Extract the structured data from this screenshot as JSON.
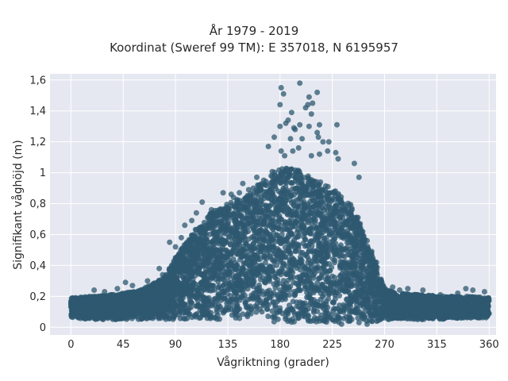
{
  "chart_data": {
    "type": "scatter",
    "title": "År 1979 - 2019",
    "subtitle": "Koordinat (Sweref 99 TM): E 357018, N 6195957",
    "xlabel": "Vågriktning (grader)",
    "ylabel": "Signifikant våghöjd (m)",
    "xlim": [
      -18,
      366
    ],
    "ylim": [
      -0.05,
      1.64
    ],
    "xticks": [
      0,
      45,
      90,
      135,
      180,
      225,
      270,
      315,
      360
    ],
    "xtick_labels": [
      "0",
      "45",
      "90",
      "135",
      "180",
      "225",
      "270",
      "315",
      "360"
    ],
    "yticks": [
      0,
      0.2,
      0.4,
      0.6,
      0.8,
      1.0,
      1.2,
      1.4,
      1.6
    ],
    "ytick_labels": [
      "0",
      "0,2",
      "0,4",
      "0,6",
      "0,8",
      "1",
      "1,2",
      "1,4",
      "1,6"
    ],
    "grid": true,
    "marker_color": "#2e5870",
    "background_color": "#e5e8f0",
    "envelope": {
      "x": [
        0,
        20,
        45,
        60,
        70,
        80,
        90,
        100,
        110,
        120,
        135,
        150,
        165,
        175,
        185,
        195,
        205,
        215,
        225,
        235,
        245,
        255,
        265,
        270,
        280,
        300,
        320,
        340,
        360
      ],
      "y_min": [
        0.06,
        0.05,
        0.05,
        0.05,
        0.05,
        0.05,
        0.05,
        0.05,
        0.05,
        0.05,
        0.05,
        0.05,
        0.04,
        0.03,
        0.02,
        0.02,
        0.02,
        0.03,
        0.03,
        0.03,
        0.03,
        0.03,
        0.04,
        0.05,
        0.05,
        0.05,
        0.05,
        0.06,
        0.06
      ],
      "y_max": [
        0.19,
        0.2,
        0.22,
        0.24,
        0.28,
        0.32,
        0.45,
        0.56,
        0.66,
        0.74,
        0.8,
        0.85,
        0.95,
        1.02,
        1.03,
        1.02,
        0.98,
        0.94,
        0.9,
        0.84,
        0.76,
        0.55,
        0.36,
        0.25,
        0.22,
        0.21,
        0.2,
        0.2,
        0.19
      ]
    },
    "outliers": [
      [
        181,
        1.55
      ],
      [
        197,
        1.58
      ],
      [
        212,
        1.52
      ],
      [
        183,
        1.51
      ],
      [
        205,
        1.49
      ],
      [
        180,
        1.44
      ],
      [
        204,
        1.44
      ],
      [
        208,
        1.45
      ],
      [
        202,
        1.42
      ],
      [
        190,
        1.39
      ],
      [
        207,
        1.38
      ],
      [
        187,
        1.34
      ],
      [
        185,
        1.32
      ],
      [
        197,
        1.31
      ],
      [
        205,
        1.3
      ],
      [
        214,
        1.31
      ],
      [
        229,
        1.31
      ],
      [
        180,
        1.3
      ],
      [
        192,
        1.29
      ],
      [
        193,
        1.28
      ],
      [
        212,
        1.26
      ],
      [
        175,
        1.23
      ],
      [
        189,
        1.22
      ],
      [
        199,
        1.22
      ],
      [
        213,
        1.23
      ],
      [
        217,
        1.2
      ],
      [
        222,
        1.2
      ],
      [
        170,
        1.17
      ],
      [
        196,
        1.16
      ],
      [
        181,
        1.14
      ],
      [
        191,
        1.14
      ],
      [
        221,
        1.14
      ],
      [
        184,
        1.11
      ],
      [
        207,
        1.11
      ],
      [
        214,
        1.12
      ],
      [
        228,
        1.13
      ],
      [
        230,
        1.09
      ],
      [
        244,
        1.06
      ],
      [
        148,
        0.93
      ],
      [
        160,
        0.97
      ],
      [
        157,
        0.9
      ],
      [
        248,
        0.97
      ],
      [
        131,
        0.87
      ],
      [
        138,
        0.86
      ],
      [
        145,
        0.87
      ],
      [
        153,
        0.89
      ],
      [
        140,
        0.84
      ],
      [
        121,
        0.76
      ],
      [
        113,
        0.81
      ],
      [
        108,
        0.74
      ],
      [
        104,
        0.69
      ],
      [
        98,
        0.66
      ],
      [
        95,
        0.58
      ],
      [
        85,
        0.55
      ],
      [
        90,
        0.52
      ],
      [
        76,
        0.38
      ],
      [
        79,
        0.34
      ],
      [
        66,
        0.3
      ],
      [
        53,
        0.27
      ],
      [
        47,
        0.29
      ],
      [
        40,
        0.25
      ],
      [
        20,
        0.24
      ],
      [
        29,
        0.23
      ],
      [
        263,
        0.42
      ],
      [
        259,
        0.49
      ],
      [
        255,
        0.56
      ],
      [
        263,
        0.29
      ],
      [
        277,
        0.26
      ],
      [
        283,
        0.24
      ],
      [
        290,
        0.25
      ],
      [
        303,
        0.24
      ],
      [
        318,
        0.21
      ],
      [
        333,
        0.22
      ],
      [
        340,
        0.25
      ],
      [
        346,
        0.24
      ],
      [
        356,
        0.23
      ],
      [
        240,
        0.04
      ],
      [
        248,
        0.03
      ],
      [
        255,
        0.02
      ],
      [
        233,
        0.02
      ]
    ]
  }
}
